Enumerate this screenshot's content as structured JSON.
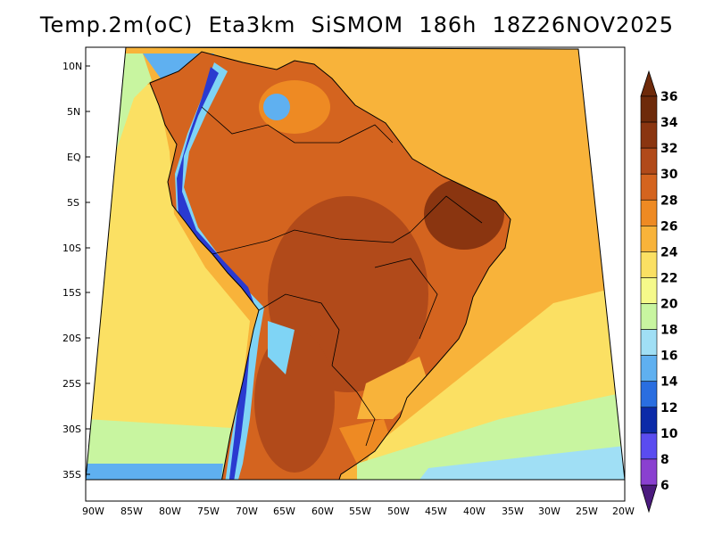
{
  "title": "Temp.2m(oC)  Eta3km  SiSMOM  186h  18Z26NOV2025",
  "map": {
    "lat_labels": [
      "10N",
      "5N",
      "EQ",
      "5S",
      "10S",
      "15S",
      "20S",
      "25S",
      "30S",
      "35S"
    ],
    "lon_labels": [
      "90W",
      "85W",
      "80W",
      "75W",
      "70W",
      "65W",
      "60W",
      "55W",
      "50W",
      "45W",
      "40W",
      "35W",
      "30W",
      "25W",
      "20W"
    ]
  },
  "colorbar": {
    "levels": [
      {
        "label": "36",
        "color": "#6e2a0a"
      },
      {
        "label": "34",
        "color": "#8a3510"
      },
      {
        "label": "32",
        "color": "#b14a1a"
      },
      {
        "label": "30",
        "color": "#d4641f"
      },
      {
        "label": "28",
        "color": "#ee8a23"
      },
      {
        "label": "26",
        "color": "#f8b33a"
      },
      {
        "label": "24",
        "color": "#fbe063"
      },
      {
        "label": "22",
        "color": "#f5f98a"
      },
      {
        "label": "20",
        "color": "#c8f5a0"
      },
      {
        "label": "18",
        "color": "#a0dff5"
      },
      {
        "label": "16",
        "color": "#5fb0f0"
      },
      {
        "label": "14",
        "color": "#2a6ee0"
      },
      {
        "label": "12",
        "color": "#0c2aa8"
      },
      {
        "label": "10",
        "color": "#5a4cf0"
      },
      {
        "label": "8",
        "color": "#8a40d0"
      },
      {
        "label": "6",
        "color": "#5c1d96"
      }
    ],
    "top_arrow_color": "#6e2a0a",
    "bottom_arrow_color": "#4b1a7e"
  },
  "colors": {
    "ocean": "#f8b33a",
    "ocean_cool": "#fbe063",
    "ocean_cold": "#c8f5a0",
    "land": "#d4641f",
    "land_hot": "#b14a1a",
    "land_hottest": "#8a3510",
    "andes_high": "#2a3ad0",
    "andes_mid": "#7fd4f5",
    "frame": "#000000"
  }
}
